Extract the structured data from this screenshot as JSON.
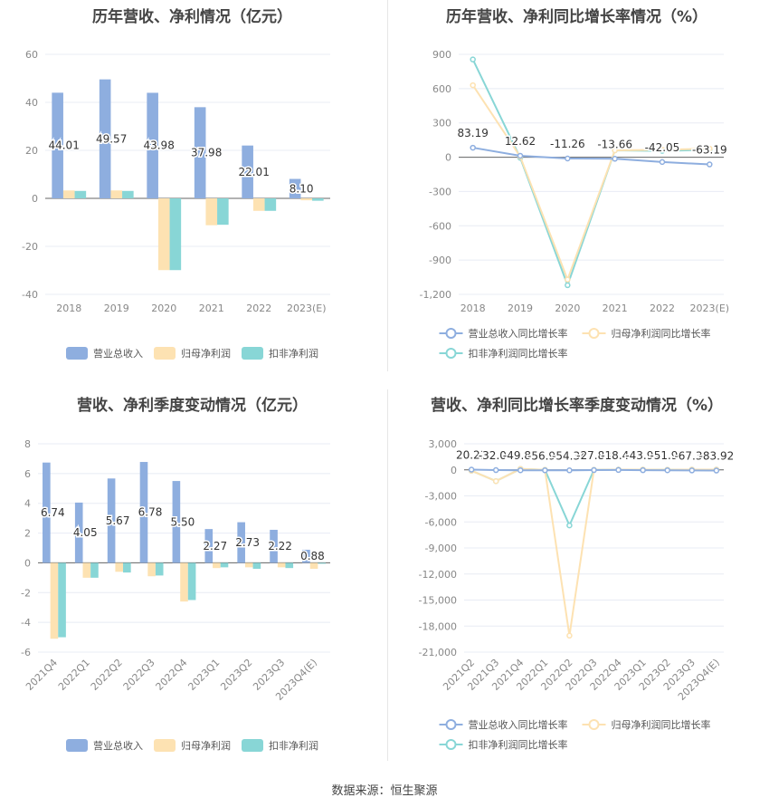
{
  "source_label": "数据来源：恒生聚源",
  "colors": {
    "revenue": "#8eaedf",
    "net_profit": "#fde2b2",
    "deducted_profit": "#88d6d6",
    "axis_text": "#888888",
    "grid": "#e8ecf4",
    "label_text": "#333333"
  },
  "chart_data": [
    {
      "id": "annual-amount",
      "type": "bar",
      "title": "历年营收、净利情况（亿元）",
      "categories": [
        "2018",
        "2019",
        "2020",
        "2021",
        "2022",
        "2023(E)"
      ],
      "ylim": [
        -40,
        60
      ],
      "yticks": [
        "-40",
        "-20",
        "0",
        "20",
        "40",
        "60"
      ],
      "ytick_values": [
        -40,
        -20,
        0,
        20,
        40,
        60
      ],
      "series": [
        {
          "name": "营业总收入",
          "values": [
            44.01,
            49.57,
            43.98,
            37.98,
            22.01,
            8.1
          ],
          "labels": [
            "44.01",
            "49.57",
            "43.98",
            "37.98",
            "22.01",
            "8.10"
          ]
        },
        {
          "name": "归母净利润",
          "values": [
            3.3,
            3.3,
            -29.9,
            -11.2,
            -5.2,
            -0.8
          ]
        },
        {
          "name": "扣非净利润",
          "values": [
            3.1,
            3.1,
            -29.9,
            -11.0,
            -5.2,
            -1.0
          ]
        }
      ],
      "grid": true,
      "legend": "bottom"
    },
    {
      "id": "annual-growth",
      "type": "line",
      "title": "历年营收、净利同比增长率情况（%）",
      "categories": [
        "2018",
        "2019",
        "2020",
        "2021",
        "2022",
        "2023(E)"
      ],
      "ylim": [
        -1200,
        900
      ],
      "yticks": [
        "-1,200",
        "-900",
        "-600",
        "-300",
        "0",
        "300",
        "600",
        "900"
      ],
      "ytick_values": [
        -1200,
        -900,
        -600,
        -300,
        0,
        300,
        600,
        900
      ],
      "series": [
        {
          "name": "营业总收入同比增长率",
          "values": [
            83.19,
            12.62,
            -11.26,
            -13.66,
            -42.05,
            -63.19
          ],
          "labels": [
            "83.19",
            "12.62",
            "-11.26",
            "-13.66",
            "-42.05",
            "-63.19"
          ]
        },
        {
          "name": "归母净利润同比增长率",
          "values": [
            630,
            5,
            -1070,
            60,
            65,
            75
          ]
        },
        {
          "name": "扣非净利润同比增长率",
          "values": [
            855,
            -5,
            -1120,
            60,
            55,
            65
          ]
        }
      ],
      "grid": true,
      "legend": "bottom"
    },
    {
      "id": "quarterly-amount",
      "type": "bar",
      "title": "营收、净利季度变动情况（亿元）",
      "categories": [
        "2021Q4",
        "2022Q1",
        "2022Q2",
        "2022Q3",
        "2022Q4",
        "2023Q1",
        "2023Q2",
        "2023Q3",
        "2023Q4(E)"
      ],
      "ylim": [
        -6,
        8
      ],
      "yticks": [
        "-6",
        "-4",
        "-2",
        "0",
        "2",
        "4",
        "6",
        "8"
      ],
      "ytick_values": [
        -6,
        -4,
        -2,
        0,
        2,
        4,
        6,
        8
      ],
      "series": [
        {
          "name": "营业总收入",
          "values": [
            6.74,
            4.05,
            5.67,
            6.78,
            5.5,
            2.27,
            2.73,
            2.22,
            0.88
          ],
          "labels": [
            "6.74",
            "4.05",
            "5.67",
            "6.78",
            "5.50",
            "2.27",
            "2.73",
            "2.22",
            "0.88"
          ]
        },
        {
          "name": "归母净利润",
          "values": [
            -5.1,
            -1.0,
            -0.6,
            -0.9,
            -2.6,
            -0.35,
            -0.3,
            -0.3,
            -0.4
          ]
        },
        {
          "name": "扣非净利润",
          "values": [
            -5.0,
            -1.0,
            -0.65,
            -0.85,
            -2.5,
            -0.3,
            -0.4,
            -0.35,
            -0.05
          ]
        }
      ],
      "grid": true,
      "legend": "bottom"
    },
    {
      "id": "quarterly-growth",
      "type": "line",
      "title": "营收、净利同比增长率季度变动情况（%）",
      "categories": [
        "2021Q2",
        "2021Q3",
        "2021Q4",
        "2022Q1",
        "2022Q2",
        "2022Q3",
        "2022Q4",
        "2023Q1",
        "2023Q2",
        "2023Q3",
        "2023Q4(E)"
      ],
      "ylim": [
        -21000,
        3000
      ],
      "yticks": [
        "-21,000",
        "-18,000",
        "-15,000",
        "-12,000",
        "-9,000",
        "-6,000",
        "-3,000",
        "0",
        "3,000"
      ],
      "ytick_values": [
        -21000,
        -18000,
        -15000,
        -12000,
        -9000,
        -6000,
        -3000,
        0,
        3000
      ],
      "series": [
        {
          "name": "营业总收入同比增长率",
          "values": [
            20.21,
            -32.04,
            -49.86,
            -56.95,
            -54.34,
            -27.83,
            -18.44,
            -43.91,
            -51.92,
            -67.34,
            -83.92
          ],
          "labels": [
            "20.21",
            "-32.04",
            "-49.86",
            "-56.95",
            "-54.34",
            "-27.83",
            "-18.44",
            "-43.91",
            "-51.92",
            "-67.34",
            "-83.92"
          ]
        },
        {
          "name": "归母净利润同比增长率",
          "values": [
            -100,
            -1300,
            100,
            0,
            -19100,
            0,
            20,
            30,
            10,
            30,
            20
          ]
        },
        {
          "name": "扣非净利润同比增长率",
          "values": [
            -100,
            -1300,
            100,
            0,
            -6400,
            0,
            20,
            30,
            10,
            30,
            20
          ]
        }
      ],
      "grid": true,
      "legend": "bottom"
    }
  ]
}
